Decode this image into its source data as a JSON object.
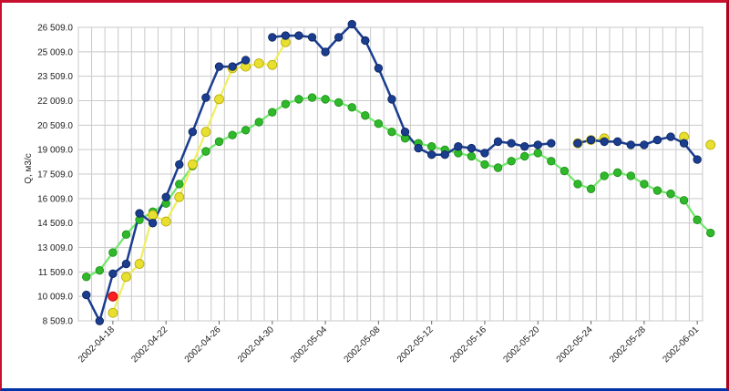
{
  "chart_data": {
    "type": "line",
    "title": "",
    "xlabel": "",
    "ylabel": "Q, м3/с",
    "x_start": "2002-04-16",
    "x_ticks": [
      "2002-04-18",
      "2002-04-22",
      "2002-04-26",
      "2002-04-30",
      "2002-05-04",
      "2002-05-08",
      "2002-05-12",
      "2002-05-16",
      "2002-05-20",
      "2002-05-24",
      "2002-05-28",
      "2002-06-01"
    ],
    "y_ticks": [
      "8 509.0",
      "10 009.0",
      "11 509.0",
      "13 009.0",
      "14 509.0",
      "16 009.0",
      "17 509.0",
      "19 009.0",
      "20 509.0",
      "22 009.0",
      "23 509.0",
      "25 009.0",
      "26 509.0"
    ],
    "ylim": [
      8509,
      26509
    ],
    "grid": true,
    "series": [
      {
        "color": "#6fe86a",
        "marker_color": "#2fb82a",
        "values": [
          11200,
          11600,
          12700,
          13800,
          14700,
          15200,
          15700,
          16900,
          18000,
          18900,
          19500,
          19900,
          20200,
          20700,
          21300,
          21800,
          22100,
          22200,
          22100,
          21900,
          21600,
          21100,
          20600,
          20100,
          19700,
          19400,
          19200,
          19000,
          18800,
          18600,
          18100,
          17900,
          18300,
          18600,
          18800,
          18300,
          17700,
          16900,
          16600,
          17400,
          17600,
          17400,
          16900,
          16500,
          16300,
          15900,
          14700,
          13900
        ]
      },
      {
        "color": "#f0ee60",
        "marker_color": "#e8e030",
        "values": [
          null,
          null,
          9000,
          11200,
          12000,
          15000,
          14600,
          16100,
          18100,
          20100,
          22100,
          24000,
          24100,
          24300,
          24200,
          25600,
          null,
          null,
          null,
          null,
          null,
          null,
          null,
          null,
          null,
          null,
          null,
          null,
          null,
          null,
          null,
          null,
          null,
          null,
          null,
          null,
          null,
          19400,
          19600,
          19700,
          null,
          null,
          null,
          null,
          null,
          19800,
          null,
          19300
        ]
      },
      {
        "color": "#1a3d8f",
        "marker_color": "#1a3d8f",
        "values": [
          10100,
          8500,
          11400,
          12000,
          15100,
          14500,
          16100,
          18100,
          20100,
          22200,
          24100,
          24100,
          24500,
          null,
          25900,
          26000,
          26000,
          25900,
          25000,
          25900,
          26700,
          25700,
          24000,
          22100,
          20100,
          19100,
          18700,
          18700,
          19200,
          19100,
          18800,
          19500,
          19400,
          19200,
          19300,
          19400,
          null,
          19400,
          19600,
          19500,
          19500,
          19300,
          19300,
          19600,
          19800,
          19400,
          18400
        ]
      },
      {
        "color": "#ff2020",
        "marker_color": "#ff2020",
        "values": [
          null,
          null,
          10000
        ]
      }
    ]
  }
}
